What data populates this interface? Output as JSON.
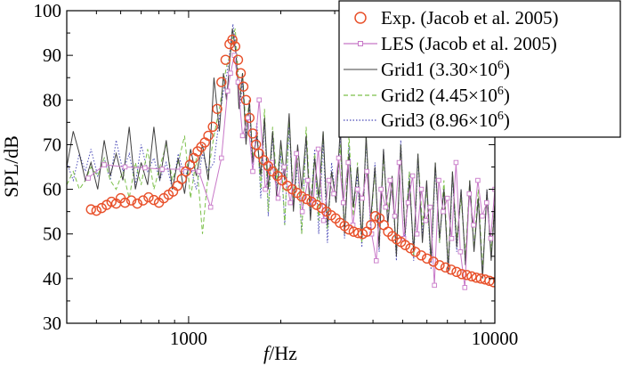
{
  "chart_data": {
    "type": "line",
    "title": "",
    "xlabel": {
      "italic": "f",
      "rest": "/Hz"
    },
    "ylabel": "SPL/dB",
    "xscale": "log",
    "xlim": [
      400,
      10000
    ],
    "ylim": [
      30,
      100
    ],
    "x_ticks": [
      1000,
      10000
    ],
    "x_tick_labels": [
      "1000",
      "10000"
    ],
    "y_ticks": [
      30,
      40,
      50,
      60,
      70,
      80,
      90,
      100
    ],
    "y_tick_labels": [
      "30",
      "40",
      "50",
      "60",
      "70",
      "80",
      "90",
      "100"
    ],
    "legend_position": "top-right",
    "series": [
      {
        "name": "Exp.",
        "legend_label": "Exp. (Jacob et al. 2005)",
        "color": "#e8502a",
        "style": "markers",
        "marker": "circle",
        "x": [
          480,
          500,
          520,
          540,
          560,
          580,
          600,
          620,
          650,
          680,
          710,
          740,
          770,
          800,
          830,
          860,
          890,
          920,
          950,
          980,
          1010,
          1040,
          1070,
          1100,
          1130,
          1160,
          1200,
          1240,
          1280,
          1320,
          1360,
          1390,
          1420,
          1450,
          1480,
          1510,
          1540,
          1580,
          1620,
          1660,
          1700,
          1760,
          1820,
          1880,
          1950,
          2020,
          2100,
          2180,
          2260,
          2340,
          2430,
          2520,
          2620,
          2720,
          2820,
          2920,
          3020,
          3120,
          3230,
          3340,
          3460,
          3580,
          3700,
          3820,
          3940,
          4070,
          4200,
          4340,
          4480,
          4630,
          4780,
          4940,
          5100,
          5300,
          5500,
          5750,
          6000,
          6300,
          6600,
          6900,
          7200,
          7500,
          7800,
          8100,
          8400,
          8700,
          9000,
          9300,
          9600,
          9900
        ],
        "y": [
          55.5,
          55.2,
          55.8,
          56.5,
          57.2,
          56.8,
          58,
          57,
          57.5,
          56.8,
          57.5,
          58.2,
          57.6,
          57,
          58,
          58.8,
          59.5,
          60.8,
          62.3,
          64,
          65.5,
          67,
          68.5,
          69.5,
          70.5,
          72,
          74,
          78,
          84,
          89,
          92.5,
          93.5,
          92,
          89,
          86,
          83,
          80,
          76,
          72.5,
          70,
          68,
          66.5,
          65.2,
          64,
          63,
          62,
          60.8,
          60,
          59.2,
          58.4,
          57.8,
          57.2,
          56.5,
          55.8,
          55,
          54.2,
          53.5,
          52.5,
          51.8,
          51,
          50.5,
          50.2,
          50,
          50.5,
          52,
          54,
          53.5,
          52,
          50.5,
          49.5,
          48.8,
          48.2,
          47.5,
          46.8,
          46,
          45.2,
          44.5,
          43.8,
          43,
          42.5,
          42,
          41.5,
          41,
          40.8,
          40.5,
          40.2,
          40,
          39.8,
          39.5,
          39.2
        ]
      },
      {
        "name": "LES",
        "legend_label": "LES (Jacob et al. 2005)",
        "color": "#c878c8",
        "style": "line+markers",
        "marker": "square",
        "x": [
          470,
          530,
          620,
          720,
          820,
          950,
          1080,
          1180,
          1280,
          1340,
          1370,
          1410,
          1450,
          1500,
          1560,
          1620,
          1700,
          1780,
          1870,
          1960,
          2050,
          2150,
          2250,
          2350,
          2450,
          2550,
          2650,
          2760,
          2870,
          2980,
          3090,
          3200,
          3320,
          3440,
          3560,
          3690,
          3820,
          3960,
          4100,
          4250,
          4400,
          4550,
          4710,
          4870,
          5040,
          5210,
          5390,
          5570,
          5760,
          5950,
          6150,
          6350,
          6560,
          6780,
          7000,
          7230,
          7470,
          7720,
          7980,
          8250,
          8520,
          8800,
          9100,
          9400,
          9700,
          10000
        ],
        "y": [
          62.5,
          65.5,
          65,
          64.8,
          64.5,
          64.5,
          64,
          56,
          67,
          82,
          86,
          90,
          84,
          72,
          76,
          64,
          80,
          60,
          66,
          58,
          65,
          57,
          68,
          55,
          62,
          57,
          69,
          53,
          62,
          59,
          67,
          57,
          66,
          52,
          60,
          58,
          64,
          50,
          44,
          60,
          56,
          62,
          54,
          66,
          49,
          57,
          63,
          50,
          60,
          53,
          56,
          38.5,
          62,
          55,
          58,
          49,
          66,
          46,
          38,
          59,
          52,
          62,
          54,
          57,
          49,
          60
        ]
      },
      {
        "name": "Grid1",
        "legend_label": "Grid1 (3.30×10",
        "legend_sup": "6",
        "color": "#404040",
        "style": "line",
        "x": [
          400,
          420,
          440,
          460,
          480,
          505,
          530,
          555,
          580,
          610,
          640,
          670,
          700,
          735,
          770,
          805,
          845,
          885,
          925,
          970,
          1015,
          1060,
          1110,
          1160,
          1210,
          1260,
          1300,
          1330,
          1360,
          1390,
          1410,
          1430,
          1460,
          1500,
          1540,
          1580,
          1620,
          1670,
          1720,
          1770,
          1820,
          1880,
          1940,
          2000,
          2060,
          2130,
          2200,
          2270,
          2340,
          2420,
          2500,
          2580,
          2660,
          2750,
          2840,
          2930,
          3030,
          3130,
          3230,
          3340,
          3450,
          3560,
          3680,
          3800,
          3930,
          4060,
          4190,
          4330,
          4470,
          4620,
          4770,
          4930,
          5090,
          5260,
          5430,
          5610,
          5800,
          5990,
          6190,
          6390,
          6600,
          6820,
          7040,
          7270,
          7510,
          7760,
          8020,
          8280,
          8550,
          8830,
          9120,
          9420,
          9730,
          10000
        ],
        "y": [
          65,
          73,
          68,
          62,
          66,
          60,
          71,
          63,
          68,
          62,
          74,
          60,
          66,
          61,
          74,
          62,
          71,
          60,
          67,
          59,
          69,
          63,
          70,
          62,
          85,
          73,
          86,
          80,
          88,
          96,
          93,
          90,
          78,
          86,
          70,
          80,
          66,
          72,
          63,
          76,
          60,
          73,
          58,
          71,
          62,
          77,
          55,
          70,
          60,
          72,
          53,
          67,
          58,
          73,
          52,
          64,
          57,
          74,
          50,
          68,
          56,
          65,
          49,
          72,
          53,
          65,
          47,
          69,
          52,
          63,
          45,
          70,
          50,
          62,
          46,
          68,
          48,
          62,
          44,
          66,
          49,
          60,
          42,
          64,
          47,
          60,
          43,
          62,
          46,
          58,
          40,
          60,
          44,
          57
        ]
      },
      {
        "name": "Grid2",
        "legend_label": "Grid2 (4.45×10",
        "legend_sup": "6",
        "color": "#7cc04a",
        "style": "dashed",
        "x": [
          400,
          420,
          440,
          460,
          480,
          505,
          530,
          555,
          580,
          610,
          640,
          670,
          700,
          735,
          770,
          805,
          845,
          885,
          925,
          970,
          1015,
          1060,
          1110,
          1160,
          1210,
          1260,
          1300,
          1335,
          1365,
          1395,
          1420,
          1445,
          1470,
          1500,
          1540,
          1580,
          1620,
          1670,
          1720,
          1770,
          1820,
          1880,
          1940,
          2000,
          2060,
          2130,
          2200,
          2270,
          2340,
          2420,
          2500,
          2580,
          2660,
          2750,
          2840,
          2930,
          3030,
          3130,
          3230,
          3340,
          3450,
          3560,
          3680,
          3800,
          3930,
          4060,
          4190,
          4330,
          4470,
          4620,
          4770,
          4930,
          5090,
          5260,
          5430,
          5610,
          5800,
          5990,
          6190,
          6390,
          6600,
          6820,
          7040,
          7270,
          7510,
          7760,
          8020,
          8280,
          8550,
          8830,
          9120,
          9420,
          9730,
          10000
        ],
        "y": [
          61,
          64,
          60,
          62,
          65,
          63,
          67,
          62,
          60,
          64,
          58,
          66,
          61,
          69,
          60,
          65,
          70,
          62,
          66,
          72,
          58,
          67,
          50,
          64,
          72,
          78,
          84,
          88,
          90,
          94,
          96,
          88,
          80,
          86,
          74,
          80,
          67,
          73,
          60,
          78,
          55,
          74,
          62,
          70,
          52,
          76,
          58,
          67,
          50,
          74,
          56,
          68,
          53,
          73,
          51,
          64,
          58,
          70,
          50,
          72,
          54,
          66,
          48,
          72,
          52,
          64,
          48,
          67,
          55,
          61,
          46,
          70,
          50,
          64,
          45,
          68,
          52,
          60,
          44,
          66,
          48,
          62,
          43,
          64,
          49,
          58,
          45,
          62,
          47,
          60,
          42,
          59,
          46,
          57
        ]
      },
      {
        "name": "Grid3",
        "legend_label": "Grid3 (8.96×10",
        "legend_sup": "6",
        "color": "#4a4ab8",
        "style": "dotted",
        "x": [
          400,
          420,
          440,
          460,
          480,
          505,
          530,
          555,
          580,
          610,
          640,
          670,
          700,
          735,
          770,
          805,
          845,
          885,
          925,
          970,
          1015,
          1060,
          1110,
          1160,
          1210,
          1260,
          1300,
          1335,
          1365,
          1395,
          1420,
          1445,
          1470,
          1500,
          1540,
          1580,
          1620,
          1670,
          1720,
          1770,
          1820,
          1880,
          1940,
          2000,
          2060,
          2130,
          2200,
          2270,
          2340,
          2420,
          2500,
          2580,
          2660,
          2750,
          2840,
          2930,
          3030,
          3130,
          3230,
          3340,
          3450,
          3560,
          3680,
          3800,
          3930,
          4060,
          4190,
          4330,
          4470,
          4620,
          4770,
          4930,
          5090,
          5260,
          5430,
          5610,
          5800,
          5990,
          6190,
          6390,
          6600,
          6820,
          7040,
          7270,
          7510,
          7760,
          8020,
          8280,
          8550,
          8830,
          9120,
          9420,
          9730,
          10000
        ],
        "y": [
          66,
          62,
          68,
          64,
          69,
          63,
          67,
          62,
          71,
          64,
          68,
          61,
          70,
          64,
          67,
          62,
          66,
          60,
          68,
          63,
          65,
          60,
          68,
          64,
          66,
          76,
          82,
          86,
          91,
          97,
          93,
          86,
          78,
          84,
          72,
          78,
          64,
          75,
          58,
          76,
          54,
          72,
          60,
          68,
          52,
          74,
          56,
          66,
          50,
          72,
          55,
          69,
          50,
          71,
          48,
          66,
          57,
          72,
          49,
          70,
          56,
          63,
          47,
          71,
          51,
          66,
          46,
          69,
          53,
          62,
          44,
          71,
          49,
          64,
          44,
          67,
          50,
          61,
          42,
          65,
          48,
          61,
          41,
          63,
          46,
          60,
          43,
          61,
          47,
          58,
          41,
          60,
          45,
          56
        ]
      }
    ]
  }
}
